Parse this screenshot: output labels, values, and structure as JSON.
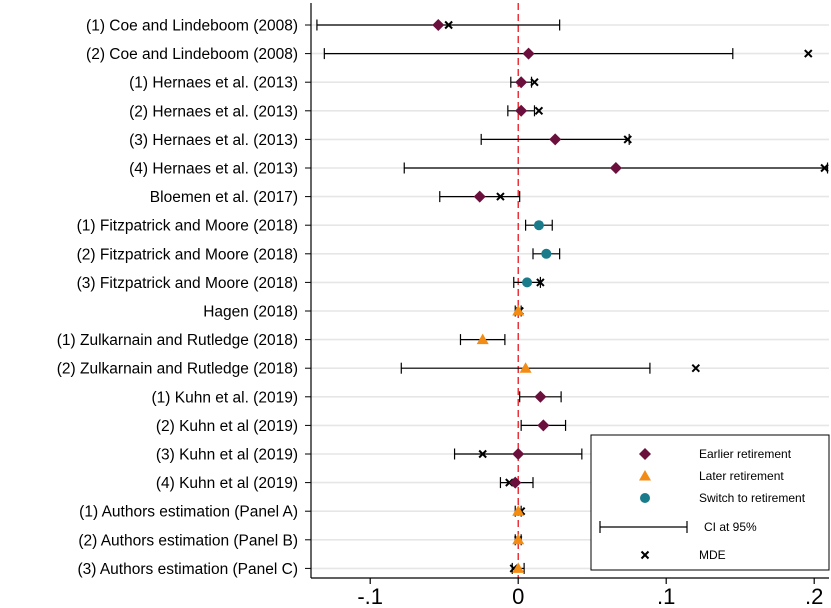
{
  "chart_data": {
    "type": "scatter",
    "orientation": "horizontal-forest-plot",
    "xlim": [
      -0.14,
      0.21
    ],
    "xticks": [
      -0.1,
      0,
      0.1,
      0.2
    ],
    "xtick_labels": [
      "-.1",
      "0",
      ".1",
      ".2"
    ],
    "reference_line": {
      "x": 0,
      "style": "dashed",
      "color": "#e8000b"
    },
    "grid": true,
    "legend_position": "bottom-right",
    "colors": {
      "earlier": "#6b0f3c",
      "later": "#f28c14",
      "switch": "#1a7b8a",
      "ci": "#000000",
      "mde": "#000000",
      "grid": "#e6e6e6"
    },
    "legend": {
      "earlier": "Earlier retirement",
      "later": "Later retirement",
      "switch": "Switch to retirement",
      "ci": "CI at 95%",
      "mde": "MDE"
    },
    "studies": [
      {
        "label": "(1) Coe and Lindeboom (2008)",
        "type": "earlier",
        "est": -0.054,
        "ci": [
          -0.136,
          0.028
        ],
        "mde": -0.047
      },
      {
        "label": "(2) Coe and Lindeboom (2008)",
        "type": "earlier",
        "est": 0.007,
        "ci": [
          -0.131,
          0.145
        ],
        "mde": 0.196
      },
      {
        "label": "(1) Hernaes et al. (2013)",
        "type": "earlier",
        "est": 0.002,
        "ci": [
          -0.005,
          0.009
        ],
        "mde": 0.011
      },
      {
        "label": "(2) Hernaes et al. (2013)",
        "type": "earlier",
        "est": 0.002,
        "ci": [
          -0.007,
          0.011
        ],
        "mde": 0.014
      },
      {
        "label": "(3) Hernaes et al. (2013)",
        "type": "earlier",
        "est": 0.025,
        "ci": [
          -0.025,
          0.075
        ],
        "mde": 0.074
      },
      {
        "label": "(4) Hernaes et al. (2013)",
        "type": "earlier",
        "est": 0.066,
        "ci": [
          -0.077,
          0.209
        ],
        "mde": 0.207
      },
      {
        "label": "Bloemen et al. (2017)",
        "type": "earlier",
        "est": -0.026,
        "ci": [
          -0.053,
          0.001
        ],
        "mde": -0.012
      },
      {
        "label": "(1) Fitzpatrick and Moore (2018)",
        "type": "switch",
        "est": 0.014,
        "ci": [
          0.005,
          0.023
        ],
        "mde": null
      },
      {
        "label": "(2) Fitzpatrick and Moore (2018)",
        "type": "switch",
        "est": 0.019,
        "ci": [
          0.01,
          0.028
        ],
        "mde": null
      },
      {
        "label": "(3) Fitzpatrick and Moore (2018)",
        "type": "switch",
        "est": 0.006,
        "ci": [
          -0.003,
          0.015
        ],
        "mde": 0.015
      },
      {
        "label": "Hagen (2018)",
        "type": "later",
        "est": 0.0,
        "ci": [
          -0.002,
          0.002
        ],
        "mde": 0.001
      },
      {
        "label": "(1) Zulkarnain and Rutledge (2018)",
        "type": "later",
        "est": -0.024,
        "ci": [
          -0.039,
          -0.009
        ],
        "mde": null
      },
      {
        "label": "(2) Zulkarnain and Rutledge (2018)",
        "type": "later",
        "est": 0.005,
        "ci": [
          -0.079,
          0.089
        ],
        "mde": 0.12
      },
      {
        "label": "(1) Kuhn et al. (2019)",
        "type": "earlier",
        "est": 0.015,
        "ci": [
          0.001,
          0.029
        ],
        "mde": null
      },
      {
        "label": "(2) Kuhn et al (2019)",
        "type": "earlier",
        "est": 0.017,
        "ci": [
          0.002,
          0.032
        ],
        "mde": null
      },
      {
        "label": "(3) Kuhn et al (2019)",
        "type": "earlier",
        "est": 0.0,
        "ci": [
          -0.043,
          0.043
        ],
        "mde": -0.024
      },
      {
        "label": "(4) Kuhn et al (2019)",
        "type": "earlier",
        "est": -0.002,
        "ci": [
          -0.012,
          0.01
        ],
        "mde": -0.006
      },
      {
        "label": "(1) Authors estimation (Panel A)",
        "type": "later",
        "est": 0.0,
        "ci": [
          -0.002,
          0.002
        ],
        "mde": 0.002
      },
      {
        "label": "(2) Authors estimation (Panel B)",
        "type": "later",
        "est": 0.0,
        "ci": [
          -0.002,
          0.002
        ],
        "mde": 0.0
      },
      {
        "label": "(3) Authors estimation (Panel C)",
        "type": "later",
        "est": 0.0,
        "ci": [
          -0.004,
          0.004
        ],
        "mde": -0.003
      }
    ]
  }
}
